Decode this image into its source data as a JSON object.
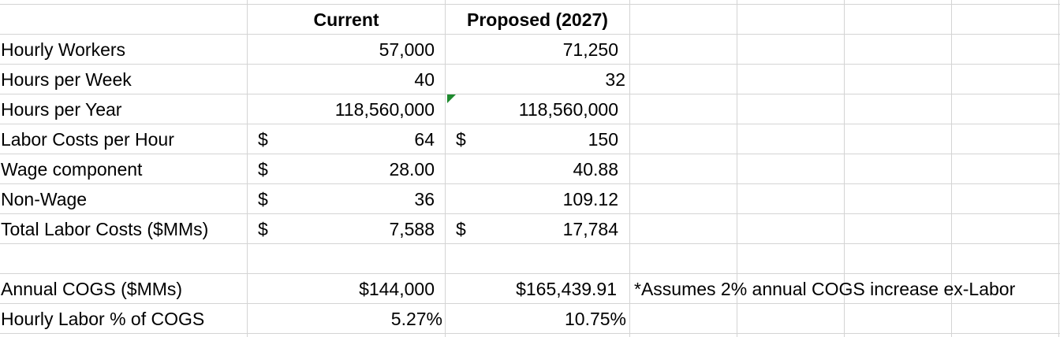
{
  "headers": {
    "current": "Current",
    "proposed": "Proposed (2027)"
  },
  "rows": [
    {
      "label": "Hourly Workers",
      "dollar_current": "",
      "current": "57,000",
      "dollar_proposed": "",
      "proposed": "71,250"
    },
    {
      "label": "Hours per Week",
      "dollar_current": "",
      "current": "40",
      "dollar_proposed": "",
      "proposed": "32"
    },
    {
      "label": "Hours per Year",
      "dollar_current": "",
      "current": "118,560,000",
      "dollar_proposed": "",
      "proposed": "118,560,000"
    },
    {
      "label": "Labor Costs per Hour",
      "dollar_current": "$",
      "current": "64",
      "dollar_proposed": "$",
      "proposed": "150"
    },
    {
      "label": "Wage component",
      "dollar_current": "$",
      "current": "28.00",
      "dollar_proposed": "",
      "proposed": "40.88"
    },
    {
      "label": "Non-Wage",
      "dollar_current": "$",
      "current": "36",
      "dollar_proposed": "",
      "proposed": "109.12"
    },
    {
      "label": "Total Labor Costs ($MMs)",
      "dollar_current": "$",
      "current": "7,588",
      "dollar_proposed": "$",
      "proposed": "17,784"
    }
  ],
  "summary": [
    {
      "label": "Annual COGS ($MMs)",
      "current": "$144,000",
      "proposed": "$165,439.91",
      "note": "*Assumes 2% annual COGS increase ex-Labor"
    },
    {
      "label": "Hourly Labor % of COGS",
      "current": "5.27%",
      "proposed": "10.75%",
      "note": ""
    }
  ],
  "colors": {
    "gridline": "#d4d4d4",
    "error_marker": "#1e8a2e"
  }
}
